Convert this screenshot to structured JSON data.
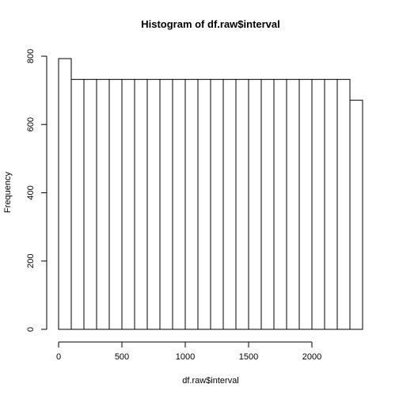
{
  "chart_data": {
    "type": "bar",
    "title": "Histogram of df.raw$interval",
    "xlabel": "df.raw$interval",
    "ylabel": "Frequency",
    "bin_edges": [
      0,
      100,
      200,
      300,
      400,
      500,
      600,
      700,
      800,
      900,
      1000,
      1100,
      1200,
      1300,
      1400,
      1500,
      1600,
      1700,
      1800,
      1900,
      2000,
      2100,
      2200,
      2300,
      2400
    ],
    "values": [
      793,
      732,
      732,
      732,
      732,
      732,
      732,
      732,
      732,
      732,
      732,
      732,
      732,
      732,
      732,
      732,
      732,
      732,
      732,
      732,
      732,
      732,
      732,
      671
    ],
    "xlim": [
      0,
      2400
    ],
    "ylim": [
      0,
      800
    ],
    "x_ticks": [
      0,
      500,
      1000,
      1500,
      2000
    ],
    "y_ticks": [
      0,
      200,
      400,
      600,
      800
    ],
    "grid": false,
    "fill_color": "#ffffff",
    "stroke_color": "#000000"
  }
}
